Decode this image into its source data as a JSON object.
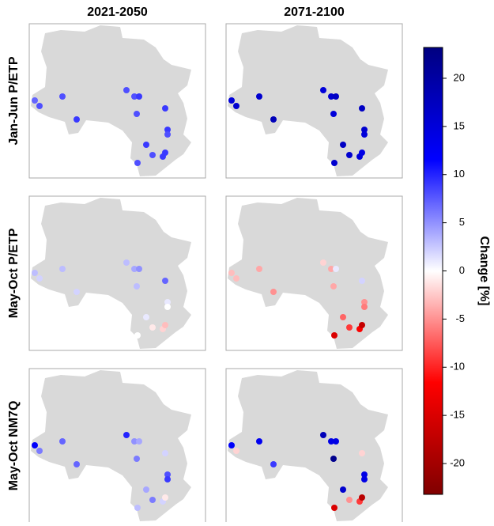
{
  "chart_data": {
    "type": "map",
    "columns": [
      "2021-2050",
      "2071-2100"
    ],
    "rows": [
      "Jan-Jun P/ETP",
      "May-Oct P/ETP",
      "May-Oct NM7Q"
    ],
    "panels": [
      {
        "values": [
          7,
          8,
          8,
          9,
          8,
          8,
          9,
          8,
          9,
          9,
          8,
          9,
          8,
          9,
          9,
          8
        ]
      },
      {
        "values": [
          15,
          16,
          16,
          18,
          15,
          16,
          17,
          15,
          17,
          16,
          15,
          17,
          16,
          15,
          14,
          16
        ]
      },
      {
        "values": [
          3,
          2,
          3,
          2,
          3,
          4,
          5,
          3,
          7,
          1,
          0,
          1,
          -1,
          -2,
          -3,
          0
        ]
      },
      {
        "values": [
          -3,
          -3,
          -4,
          -5,
          -2,
          -4,
          1,
          -4,
          2,
          -5,
          -6,
          -7,
          -9,
          -12,
          -17,
          -15
        ]
      },
      {
        "values": [
          12,
          6,
          7,
          7,
          10,
          5,
          4,
          6,
          2,
          8,
          9,
          4,
          6,
          2,
          -1,
          3
        ]
      },
      {
        "values": [
          12,
          -2,
          13,
          9,
          18,
          14,
          14,
          22,
          -2,
          14,
          14,
          16,
          -5,
          -9,
          -18,
          -15
        ]
      }
    ],
    "colorbar": {
      "label": "Change [%]",
      "lim": [
        -23.2,
        23.2
      ],
      "ticks": [
        -20,
        -15,
        -10,
        -5,
        0,
        5,
        10,
        15,
        20
      ],
      "colors": [
        "#800000",
        "#ff0000",
        "#ffffff",
        "#0000ff",
        "#000080"
      ]
    }
  }
}
